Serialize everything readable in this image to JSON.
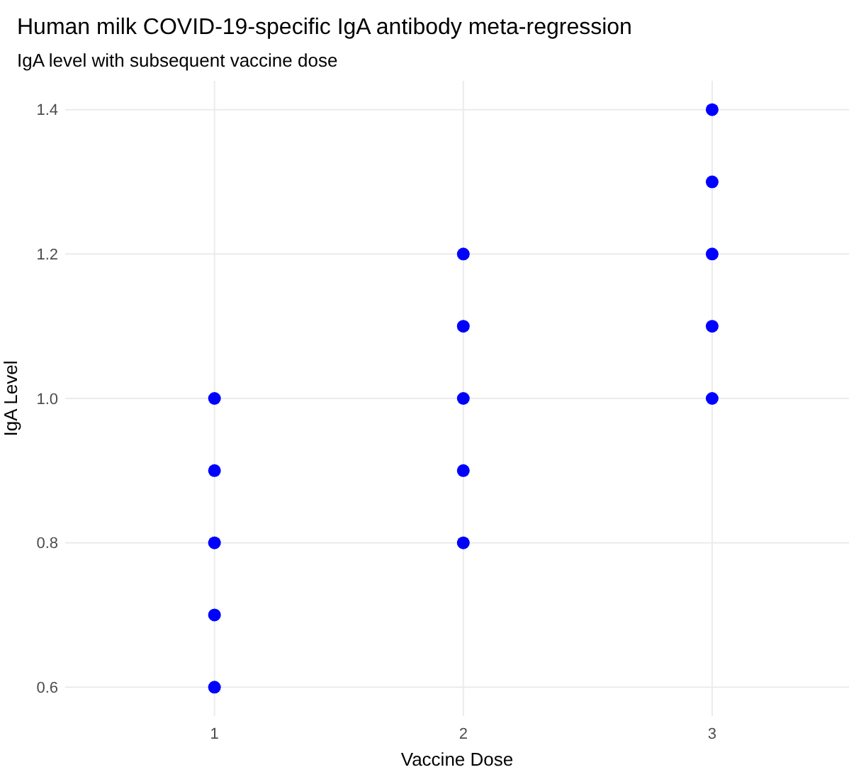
{
  "chart_data": {
    "type": "scatter",
    "title": "Human milk COVID-19-specific IgA antibody meta-regression",
    "subtitle": "IgA level with subsequent vaccine dose",
    "xlabel": "Vaccine Dose",
    "ylabel": "IgA Level",
    "series": [
      {
        "color": "#0000ff",
        "x": [
          1,
          1,
          1,
          1,
          1,
          2,
          2,
          2,
          2,
          2,
          3,
          3,
          3,
          3,
          3
        ],
        "values": [
          0.6,
          0.7,
          0.8,
          0.9,
          1.0,
          0.8,
          0.9,
          1.0,
          1.1,
          1.2,
          1.0,
          1.1,
          1.2,
          1.3,
          1.4
        ]
      }
    ],
    "xlim": [
      0.4,
      3.55
    ],
    "xticks": [
      1,
      2,
      3
    ],
    "ylim": [
      0.56,
      1.44
    ],
    "yticks": [
      0.6,
      0.8,
      {
        "value": 1,
        "label": "1.0"
      },
      1.2,
      1.4
    ],
    "grid": true,
    "marker": "circle"
  }
}
